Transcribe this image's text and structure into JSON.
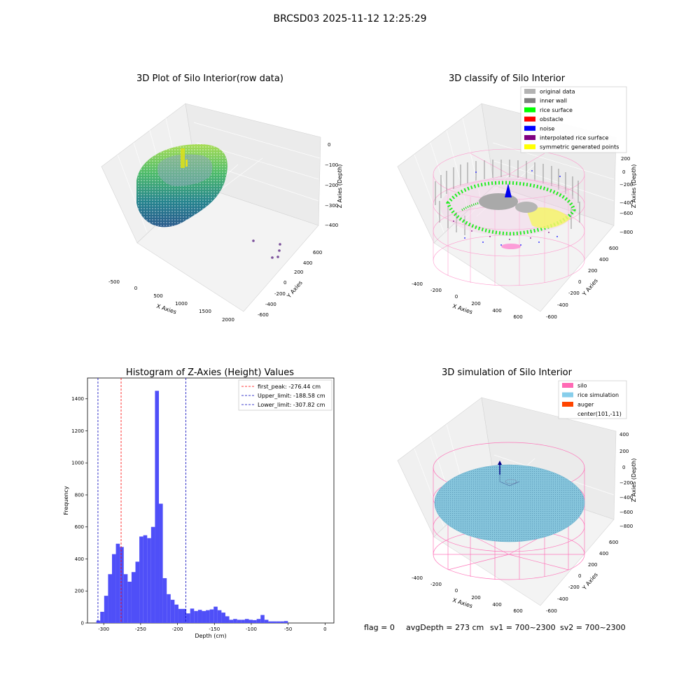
{
  "suptitle": "BRCSD03 2025-11-12 12:25:29",
  "status": {
    "flag": "flag = 0",
    "avg_depth": "avgDepth = 273 cm",
    "sv1": "sv1 = 700~2300",
    "sv2": "sv2 = 700~2300"
  },
  "chart_data": [
    {
      "type": "scatter",
      "title": "3D Plot of Silo Interior(row data)",
      "xlabel": "X Axies",
      "ylabel": "Y Axies",
      "zlabel": "Z Axies (Depth)",
      "x_ticks": [
        "-500",
        "0",
        "500",
        "1000",
        "1500",
        "2000"
      ],
      "y_ticks": [
        "-600",
        "-400",
        "-200",
        "0",
        "200",
        "400",
        "600"
      ],
      "z_ticks": [
        "0",
        "−100",
        "−200",
        "−300",
        "−400"
      ],
      "colors": {
        "high": "#9fdc55",
        "mid": "#3aaa7a",
        "low": "#2d6f8e",
        "outlier": "#7a4f9a"
      }
    },
    {
      "type": "scatter",
      "title": "3D classify of Silo Interior",
      "xlabel": "X Axies",
      "ylabel": "Y Axies",
      "zlabel": "Z Axies (Depth)",
      "x_ticks": [
        "-400",
        "-200",
        "0",
        "200",
        "400",
        "600"
      ],
      "y_ticks": [
        "-600",
        "-400",
        "-200",
        "0",
        "200",
        "400",
        "600"
      ],
      "z_ticks": [
        "200",
        "0",
        "−200",
        "−400",
        "−600",
        "−800"
      ],
      "legend": [
        {
          "label": "original data",
          "color": "#b3b3b3"
        },
        {
          "label": "inner wall",
          "color": "#808080"
        },
        {
          "label": "rice surface",
          "color": "#00ff00"
        },
        {
          "label": "obstacle",
          "color": "#ff0000"
        },
        {
          "label": "noise",
          "color": "#0000ff"
        },
        {
          "label": "interpolated rice surface",
          "color": "#800080"
        },
        {
          "label": "symmetric generated points",
          "color": "#ffff00"
        }
      ],
      "legend_loc": "upper right"
    },
    {
      "type": "bar",
      "title": "Histogram of Z-Axies (Height) Values",
      "xlabel": "Depth (cm)",
      "ylabel": "Frequency",
      "xlim": [
        -322,
        12
      ],
      "ylim": [
        0,
        1530
      ],
      "x_ticks": [
        -300,
        -250,
        -200,
        -150,
        -100,
        -50,
        0
      ],
      "y_ticks": [
        0,
        200,
        400,
        600,
        800,
        1000,
        1200,
        1400
      ],
      "bin_start": -310,
      "bin_width": 5.3,
      "values": [
        15,
        70,
        170,
        305,
        430,
        495,
        475,
        305,
        258,
        318,
        383,
        540,
        548,
        530,
        600,
        1450,
        745,
        280,
        180,
        145,
        115,
        88,
        88,
        60,
        90,
        75,
        82,
        75,
        80,
        85,
        102,
        80,
        65,
        42,
        20,
        25,
        20,
        20,
        25,
        20,
        18,
        25,
        50,
        20,
        10,
        10,
        10,
        10,
        12
      ],
      "bar_color": "#4f4ff8",
      "vlines": [
        {
          "x": -276.44,
          "color": "#ff0000",
          "label": "first_peak: -276.44 cm"
        },
        {
          "x": -188.58,
          "color": "#0000bb",
          "label": "Upper_limit: -188.58 cm"
        },
        {
          "x": -307.82,
          "color": "#0000bb",
          "label": "Lower_limit: -307.82 cm"
        }
      ],
      "legend_loc": "upper right"
    },
    {
      "type": "scatter",
      "title": "3D simulation of Silo Interior",
      "xlabel": "X Axies",
      "ylabel": "Y Axies",
      "zlabel": "Z Axies (Depth)",
      "x_ticks": [
        "-400",
        "-200",
        "0",
        "200",
        "400",
        "600"
      ],
      "y_ticks": [
        "-600",
        "-400",
        "-200",
        "0",
        "200",
        "400",
        "600"
      ],
      "z_ticks": [
        "400",
        "200",
        "0",
        "−200",
        "−400",
        "−600",
        "−800"
      ],
      "legend": [
        {
          "label": "silo",
          "color": "#ff69b4"
        },
        {
          "label": "rice simulation",
          "color": "#87ceeb"
        },
        {
          "label": "auger",
          "color": "#ff4500"
        },
        {
          "label": "center(101,-11)",
          "color": ""
        }
      ],
      "legend_loc": "upper right"
    }
  ]
}
